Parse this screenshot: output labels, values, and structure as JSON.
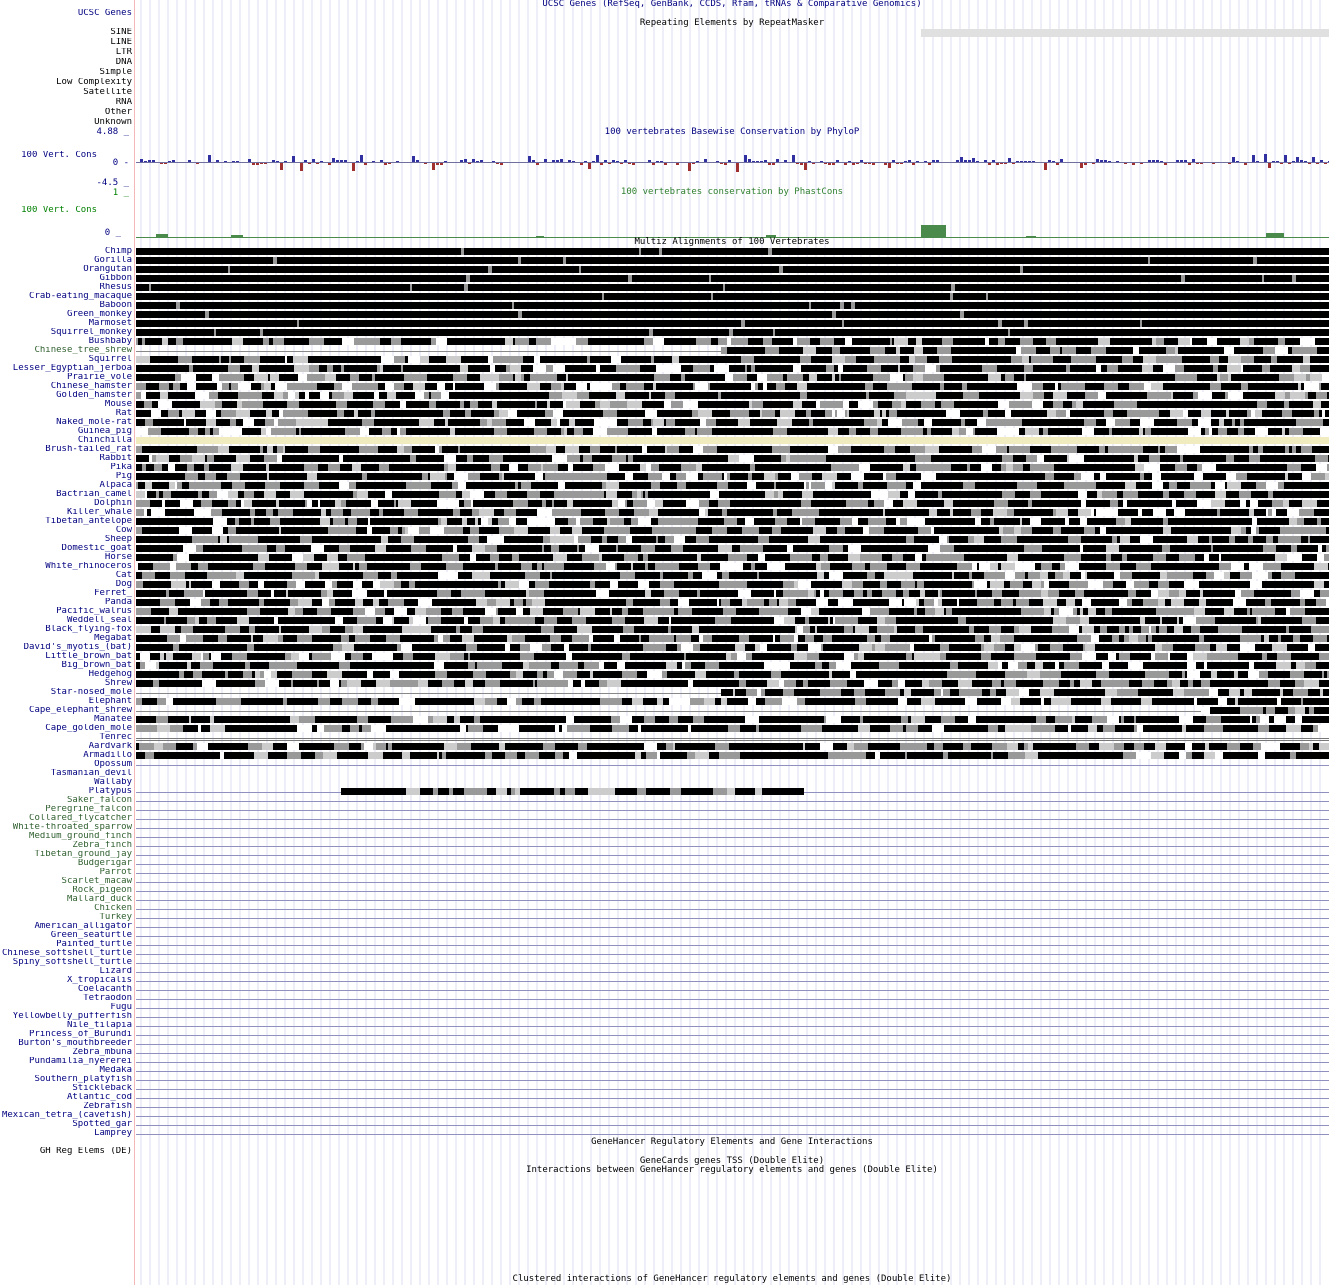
{
  "colors": {
    "navy": "#000080",
    "green": "#306030",
    "dark_green": "#008000",
    "phylop_pos": "#3030a0",
    "phylop_neg": "#a03030",
    "phastcons": "#4a8a4a",
    "highlight": "#f0ecc0",
    "grid": "#d8d8ff"
  },
  "tracks": {
    "ucsc_genes_label": "UCSC Genes",
    "ucsc_genes_title": "UCSC Genes (RefSeq, GenBank, CCDS, Rfam, tRNAs & Comparative Genomics)",
    "repeatmasker_title": "Repeating Elements by RepeatMasker",
    "repeat_classes": [
      "SINE",
      "LINE",
      "LTR",
      "DNA",
      "Simple",
      "Low Complexity",
      "Satellite",
      "RNA",
      "Other",
      "Unknown"
    ],
    "phylop_title": "100 vertebrates Basewise Conservation by PhyloP",
    "phylop_label": "100 Vert. Cons",
    "phylop_max": "4.88 _",
    "phylop_zero": "0 -",
    "phylop_min": "-4.5 _",
    "phastcons_title": "100 vertebrates conservation by PhastCons",
    "phastcons_label": "100 Vert. Cons",
    "phastcons_max": "1 _",
    "phastcons_zero": "0 _",
    "multiz_title": "Multiz Alignments of 100 Vertebrates",
    "genehancer_title": "GeneHancer Regulatory Elements and Gene Interactions",
    "gh_label": "GH Reg Elems (DE)",
    "genecards_title": "GeneCards genes TSS (Double Elite)",
    "interactions_title": "Interactions between GeneHancer regulatory elements and genes (Double Elite)",
    "clustered_title": "Clustered interactions of GeneHancer regulatory elements and genes (Double Elite)"
  },
  "species": [
    {
      "name": "Chimp",
      "c": "navy",
      "type": "full"
    },
    {
      "name": "Gorilla",
      "c": "navy",
      "type": "full"
    },
    {
      "name": "Orangutan",
      "c": "navy",
      "type": "full"
    },
    {
      "name": "Gibbon",
      "c": "navy",
      "type": "full"
    },
    {
      "name": "Rhesus",
      "c": "navy",
      "type": "full"
    },
    {
      "name": "Crab-eating_macaque",
      "c": "navy",
      "type": "full"
    },
    {
      "name": "Baboon",
      "c": "navy",
      "type": "full"
    },
    {
      "name": "Green_monkey",
      "c": "navy",
      "type": "full"
    },
    {
      "name": "Marmoset",
      "c": "navy",
      "type": "full"
    },
    {
      "name": "Squirrel_monkey",
      "c": "navy",
      "type": "full"
    },
    {
      "name": "Bushbaby",
      "c": "navy",
      "type": "broken"
    },
    {
      "name": "Chinese_tree_shrew",
      "c": "green",
      "type": "partial"
    },
    {
      "name": "Squirrel",
      "c": "navy",
      "type": "mixed"
    },
    {
      "name": "Lesser_Egyptian_jerboa",
      "c": "navy",
      "type": "mixed"
    },
    {
      "name": "Prairie_vole",
      "c": "navy",
      "type": "mixed"
    },
    {
      "name": "Chinese_hamster",
      "c": "navy",
      "type": "mixed"
    },
    {
      "name": "Golden_hamster",
      "c": "navy",
      "type": "mixed"
    },
    {
      "name": "Mouse",
      "c": "navy",
      "type": "mixed"
    },
    {
      "name": "Rat",
      "c": "navy",
      "type": "mixed"
    },
    {
      "name": "Naked_mole-rat",
      "c": "navy",
      "type": "mixed"
    },
    {
      "name": "Guinea_pig",
      "c": "navy",
      "type": "mixed"
    },
    {
      "name": "Chinchilla",
      "c": "navy",
      "type": "highlight"
    },
    {
      "name": "Brush-tailed_rat",
      "c": "navy",
      "type": "mixed"
    },
    {
      "name": "Rabbit",
      "c": "navy",
      "type": "mixed"
    },
    {
      "name": "Pika",
      "c": "navy",
      "type": "mixed"
    },
    {
      "name": "Pig",
      "c": "navy",
      "type": "mixed"
    },
    {
      "name": "Alpaca",
      "c": "navy",
      "type": "mixed"
    },
    {
      "name": "Bactrian_camel",
      "c": "navy",
      "type": "mixed"
    },
    {
      "name": "Dolphin",
      "c": "navy",
      "type": "mixed"
    },
    {
      "name": "Killer_whale",
      "c": "navy",
      "type": "mixed"
    },
    {
      "name": "Tibetan_antelope",
      "c": "navy",
      "type": "mixed"
    },
    {
      "name": "Cow",
      "c": "navy",
      "type": "mixed"
    },
    {
      "name": "Sheep",
      "c": "navy",
      "type": "mixed"
    },
    {
      "name": "Domestic_goat",
      "c": "navy",
      "type": "mixed"
    },
    {
      "name": "Horse",
      "c": "navy",
      "type": "mixed"
    },
    {
      "name": "White_rhinoceros",
      "c": "navy",
      "type": "mixed"
    },
    {
      "name": "Cat",
      "c": "navy",
      "type": "mixed"
    },
    {
      "name": "Dog",
      "c": "navy",
      "type": "mixed"
    },
    {
      "name": "Ferret_",
      "c": "navy",
      "type": "mixed"
    },
    {
      "name": "Panda",
      "c": "navy",
      "type": "mixed"
    },
    {
      "name": "Pacific_walrus",
      "c": "navy",
      "type": "mixed"
    },
    {
      "name": "Weddell_seal",
      "c": "navy",
      "type": "mixed"
    },
    {
      "name": "Black_flying-fox",
      "c": "navy",
      "type": "mixed"
    },
    {
      "name": "Megabat",
      "c": "navy",
      "type": "mixed"
    },
    {
      "name": "David's_myotis_(bat)",
      "c": "navy",
      "type": "mixed"
    },
    {
      "name": "Little_brown_bat",
      "c": "navy",
      "type": "mixed"
    },
    {
      "name": "Big_brown_bat",
      "c": "navy",
      "type": "mixed"
    },
    {
      "name": "Hedgehog",
      "c": "navy",
      "type": "mixed"
    },
    {
      "name": "Shrew",
      "c": "navy",
      "type": "mixed"
    },
    {
      "name": "Star-nosed_mole",
      "c": "navy",
      "type": "partial"
    },
    {
      "name": "Elephant",
      "c": "navy",
      "type": "mixed"
    },
    {
      "name": "Cape_elephant_shrew",
      "c": "navy",
      "type": "partial2"
    },
    {
      "name": "Manatee",
      "c": "navy",
      "type": "mixed"
    },
    {
      "name": "Cape_golden_mole",
      "c": "navy",
      "type": "mixed"
    },
    {
      "name": "Tenrec",
      "c": "navy",
      "type": "double"
    },
    {
      "name": "Aardvark",
      "c": "navy",
      "type": "mixed"
    },
    {
      "name": "Armadillo",
      "c": "navy",
      "type": "mixed"
    },
    {
      "name": "Opossum",
      "c": "navy",
      "type": "line"
    },
    {
      "name": "Tasmanian_devil",
      "c": "navy",
      "type": "empty"
    },
    {
      "name": "Wallaby",
      "c": "navy",
      "type": "empty"
    },
    {
      "name": "Platypus",
      "c": "navy",
      "type": "platypus"
    },
    {
      "name": "Saker_falcon",
      "c": "green",
      "type": "line"
    },
    {
      "name": "Peregrine_falcon",
      "c": "green",
      "type": "line"
    },
    {
      "name": "Collared_flycatcher",
      "c": "green",
      "type": "line"
    },
    {
      "name": "White-throated_sparrow",
      "c": "green",
      "type": "line"
    },
    {
      "name": "Medium_ground_finch",
      "c": "green",
      "type": "line"
    },
    {
      "name": "Zebra_finch",
      "c": "green",
      "type": "line"
    },
    {
      "name": "Tibetan_ground_jay",
      "c": "green",
      "type": "line"
    },
    {
      "name": "Budgerigar",
      "c": "green",
      "type": "line"
    },
    {
      "name": "Parrot",
      "c": "green",
      "type": "line"
    },
    {
      "name": "Scarlet_macaw",
      "c": "green",
      "type": "line"
    },
    {
      "name": "Rock_pigeon",
      "c": "green",
      "type": "line"
    },
    {
      "name": "Mallard_duck",
      "c": "green",
      "type": "line"
    },
    {
      "name": "Chicken",
      "c": "green",
      "type": "line"
    },
    {
      "name": "Turkey",
      "c": "green",
      "type": "line"
    },
    {
      "name": "American_alligator",
      "c": "navy",
      "type": "line"
    },
    {
      "name": "Green_seaturtle",
      "c": "navy",
      "type": "line"
    },
    {
      "name": "Painted_turtle",
      "c": "navy",
      "type": "line"
    },
    {
      "name": "Chinese_softshell_turtle",
      "c": "navy",
      "type": "line"
    },
    {
      "name": "Spiny_softshell_turtle",
      "c": "navy",
      "type": "line"
    },
    {
      "name": "Lizard",
      "c": "navy",
      "type": "line"
    },
    {
      "name": "X_tropicalis",
      "c": "navy",
      "type": "line"
    },
    {
      "name": "Coelacanth",
      "c": "navy",
      "type": "line"
    },
    {
      "name": "Tetraodon",
      "c": "navy",
      "type": "line"
    },
    {
      "name": "Fugu",
      "c": "navy",
      "type": "line"
    },
    {
      "name": "Yellowbelly_pufferfish",
      "c": "navy",
      "type": "line"
    },
    {
      "name": "Nile_tilapia",
      "c": "navy",
      "type": "line"
    },
    {
      "name": "Princess_of_Burundi",
      "c": "navy",
      "type": "line"
    },
    {
      "name": "Burton's_mouthbreeder",
      "c": "navy",
      "type": "line"
    },
    {
      "name": "Zebra_mbuna",
      "c": "navy",
      "type": "line"
    },
    {
      "name": "Pundamilia_nyererei",
      "c": "navy",
      "type": "line"
    },
    {
      "name": "Medaka",
      "c": "navy",
      "type": "line"
    },
    {
      "name": "Southern_platyfish",
      "c": "navy",
      "type": "line"
    },
    {
      "name": "Stickleback",
      "c": "navy",
      "type": "line"
    },
    {
      "name": "Atlantic_cod",
      "c": "navy",
      "type": "line"
    },
    {
      "name": "Zebrafish",
      "c": "navy",
      "type": "line"
    },
    {
      "name": "Mexican_tetra_(cavefish)",
      "c": "navy",
      "type": "line"
    },
    {
      "name": "Spotted_gar",
      "c": "navy",
      "type": "line"
    },
    {
      "name": "Lamprey",
      "c": "navy",
      "type": "line"
    }
  ]
}
